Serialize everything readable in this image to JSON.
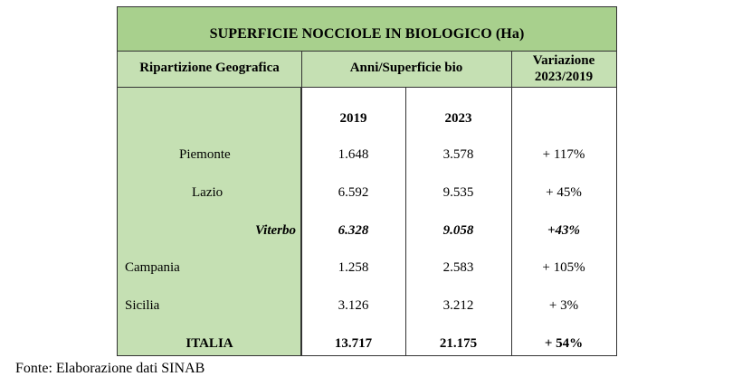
{
  "table": {
    "title": "SUPERFICIE NOCCIOLE IN BIOLOGICO (Ha)",
    "headers": {
      "region": "Ripartizione Geografica",
      "years_area": "Anni/Superficie bio",
      "variation_line1": "Variazione",
      "variation_line2": "2023/2019"
    },
    "years": [
      "2019",
      "2023"
    ],
    "rows": [
      {
        "region": "Piemonte",
        "v2019": "1.648",
        "v2023": "3.578",
        "change": "+ 117%"
      },
      {
        "region": "Lazio",
        "v2019": "6.592",
        "v2023": "9.535",
        "change": "+ 45%"
      },
      {
        "region": "Viterbo",
        "v2019": "6.328",
        "v2023": "9.058",
        "change": "+43%"
      },
      {
        "region": "Campania",
        "v2019": "1.258",
        "v2023": "2.583",
        "change": "+ 105%"
      },
      {
        "region": "Sicilia",
        "v2019": "3.126",
        "v2023": "3.212",
        "change": "+ 3%"
      }
    ],
    "total": {
      "region": "ITALIA",
      "v2019": "13.717",
      "v2023": "21.175",
      "change": "+ 54%"
    }
  },
  "footer": {
    "source": "Fonte: Elaborazione dati SINAB"
  }
}
